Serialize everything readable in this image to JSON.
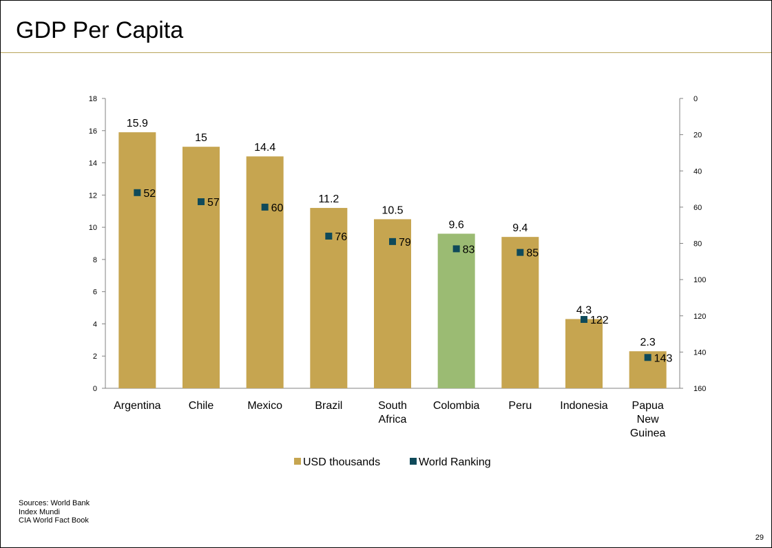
{
  "slide": {
    "title": "GDP Per Capita",
    "sources": [
      "Sources: World Bank",
      "Index Mundi",
      "CIA World Fact Book"
    ],
    "page_number": "29"
  },
  "colors": {
    "bar": "#c6a550",
    "highlight_bar": "#9bbb73",
    "marker": "#0f4a5a",
    "axis": "#808080"
  },
  "chart_data": {
    "type": "bar",
    "title": "",
    "categories": [
      [
        "Argentina"
      ],
      [
        "Chile"
      ],
      [
        "Mexico"
      ],
      [
        "Brazil"
      ],
      [
        "South",
        "Africa"
      ],
      [
        "Colombia"
      ],
      [
        "Peru"
      ],
      [
        "Indonesia"
      ],
      [
        "Papua",
        "New",
        "Guinea"
      ]
    ],
    "highlight_category_index": 5,
    "series": [
      {
        "name": "USD thousands",
        "type": "bar",
        "axis": "left",
        "values": [
          15.9,
          15,
          14.4,
          11.2,
          10.5,
          9.6,
          9.4,
          4.3,
          2.3
        ],
        "labels": [
          "15.9",
          "15",
          "14.4",
          "11.2",
          "10.5",
          "9.6",
          "9.4",
          "4.3",
          "2.3"
        ]
      },
      {
        "name": "World Ranking",
        "type": "scatter",
        "axis": "right",
        "values": [
          52,
          57,
          60,
          76,
          79,
          83,
          85,
          122,
          143
        ],
        "labels": [
          "52",
          "57",
          "60",
          "76",
          "79",
          "83",
          "85",
          "122",
          "143"
        ]
      }
    ],
    "y_left": {
      "min": 0,
      "max": 18,
      "step": 2
    },
    "y_right": {
      "min": 0,
      "max": 160,
      "step": 20,
      "reversed": true
    },
    "grid": false,
    "legend_position": "bottom"
  }
}
